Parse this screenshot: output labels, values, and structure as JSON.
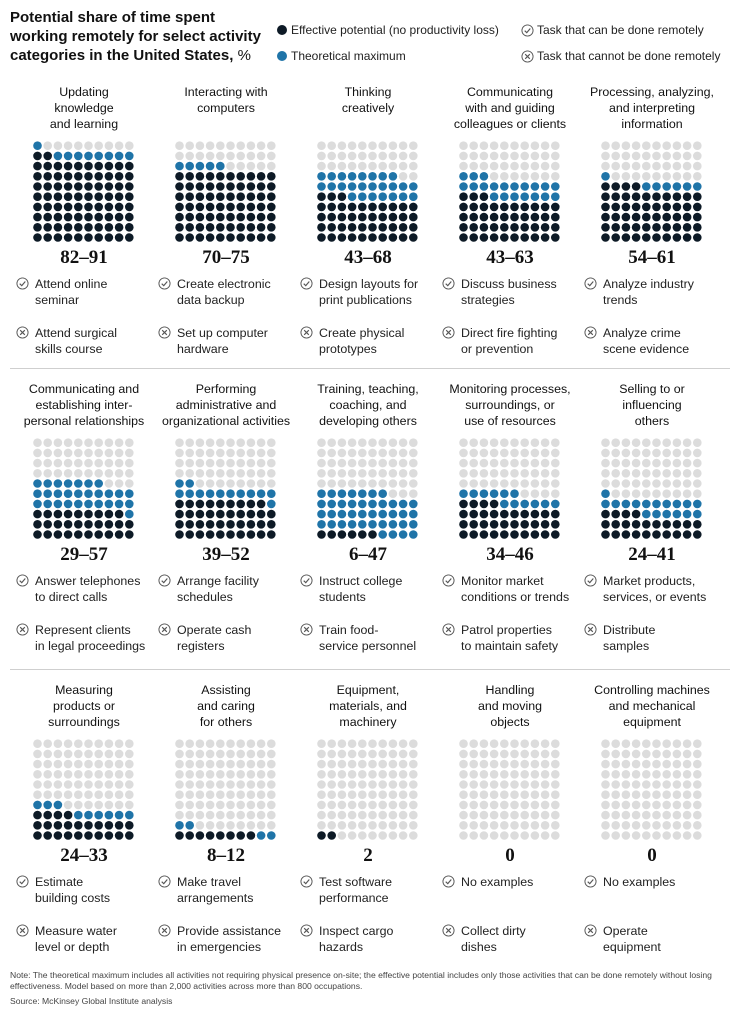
{
  "title": "Potential share of time spent working remotely for select activity categories in the United States,",
  "title_unit": "%",
  "legend": {
    "effective": "Effective potential (no productivity loss)",
    "theoretical": "Theoretical maximum",
    "can_remote": "Task that can be done remotely",
    "cannot_remote": "Task that cannot be done remotely"
  },
  "colors": {
    "effective": "#0d1a26",
    "theoretical": "#1f74a8",
    "empty": "#dcdcdc"
  },
  "icons": {
    "check": "check-circle-icon",
    "cross": "x-circle-icon"
  },
  "chart_data": {
    "type": "waffle",
    "unit": "%",
    "series_names": [
      "Effective potential (no productivity loss)",
      "Theoretical maximum"
    ],
    "categories": [
      {
        "name": "Updating\nknowledge\nand learning",
        "range": "82–91",
        "effective": 82,
        "theoretical": 91,
        "remote_example": "Attend online\nseminar",
        "onsite_example": "Attend surgical\nskills course"
      },
      {
        "name": "Interacting with\ncomputers",
        "range": "70–75",
        "effective": 70,
        "theoretical": 75,
        "remote_example": "Create electronic\ndata backup",
        "onsite_example": "Set up computer\nhardware"
      },
      {
        "name": "Thinking\ncreatively",
        "range": "43–68",
        "effective": 43,
        "theoretical": 68,
        "remote_example": "Design layouts for\nprint publications",
        "onsite_example": "Create physical\nprototypes"
      },
      {
        "name": "Communicating\nwith and guiding\ncolleagues or clients",
        "range": "43–63",
        "effective": 43,
        "theoretical": 63,
        "remote_example": "Discuss business\nstrategies",
        "onsite_example": "Direct fire fighting\nor prevention"
      },
      {
        "name": "Processing, analyzing,\nand interpreting\ninformation",
        "range": "54–61",
        "effective": 54,
        "theoretical": 61,
        "remote_example": "Analyze industry\ntrends",
        "onsite_example": "Analyze crime\nscene evidence"
      },
      {
        "name": "Communicating and\nestablishing inter-\npersonal relationships",
        "range": "29–57",
        "effective": 29,
        "theoretical": 57,
        "remote_example": "Answer telephones\nto direct calls",
        "onsite_example": "Represent clients\nin legal proceedings"
      },
      {
        "name": "Performing\nadministrative and\norganizational activities",
        "range": "39–52",
        "effective": 39,
        "theoretical": 52,
        "remote_example": "Arrange facility\nschedules",
        "onsite_example": "Operate cash\nregisters"
      },
      {
        "name": "Training, teaching,\ncoaching, and\ndeveloping others",
        "range": "6–47",
        "effective": 6,
        "theoretical": 47,
        "remote_example": "Instruct college\nstudents",
        "onsite_example": "Train food-\nservice personnel"
      },
      {
        "name": "Monitoring processes,\nsurroundings, or\nuse of resources",
        "range": "34–46",
        "effective": 34,
        "theoretical": 46,
        "remote_example": "Monitor market\nconditions or trends",
        "onsite_example": "Patrol properties\nto maintain safety"
      },
      {
        "name": "Selling to or\ninfluencing\nothers",
        "range": "24–41",
        "effective": 24,
        "theoretical": 41,
        "remote_example": "Market products,\nservices, or events",
        "onsite_example": "Distribute\nsamples"
      },
      {
        "name": "Measuring\nproducts or\nsurroundings",
        "range": "24–33",
        "effective": 24,
        "theoretical": 33,
        "remote_example": "Estimate\nbuilding costs",
        "onsite_example": "Measure water\nlevel or depth"
      },
      {
        "name": "Assisting\nand caring\nfor others",
        "range": "8–12",
        "effective": 8,
        "theoretical": 12,
        "remote_example": "Make travel\narrangements",
        "onsite_example": "Provide assistance\nin emergencies"
      },
      {
        "name": "Equipment,\nmaterials, and\nmachinery",
        "range": "2",
        "effective": 2,
        "theoretical": 2,
        "remote_example": "Test software\nperformance",
        "onsite_example": "Inspect cargo\nhazards"
      },
      {
        "name": "Handling\nand moving\nobjects",
        "range": "0",
        "effective": 0,
        "theoretical": 0,
        "remote_example": "No examples",
        "onsite_example": "Collect dirty\ndishes"
      },
      {
        "name": "Controlling machines\nand mechanical\nequipment",
        "range": "0",
        "effective": 0,
        "theoretical": 0,
        "remote_example": "No examples",
        "onsite_example": "Operate\nequipment"
      }
    ]
  },
  "note": "Note: The theoretical maximum includes all activities not requiring physical presence on-site; the effective potential includes only those activities that can be done remotely without losing effectiveness. Model based on more than 2,000 activities across more than 800 occupations.",
  "source": "Source: McKinsey Global Institute analysis"
}
